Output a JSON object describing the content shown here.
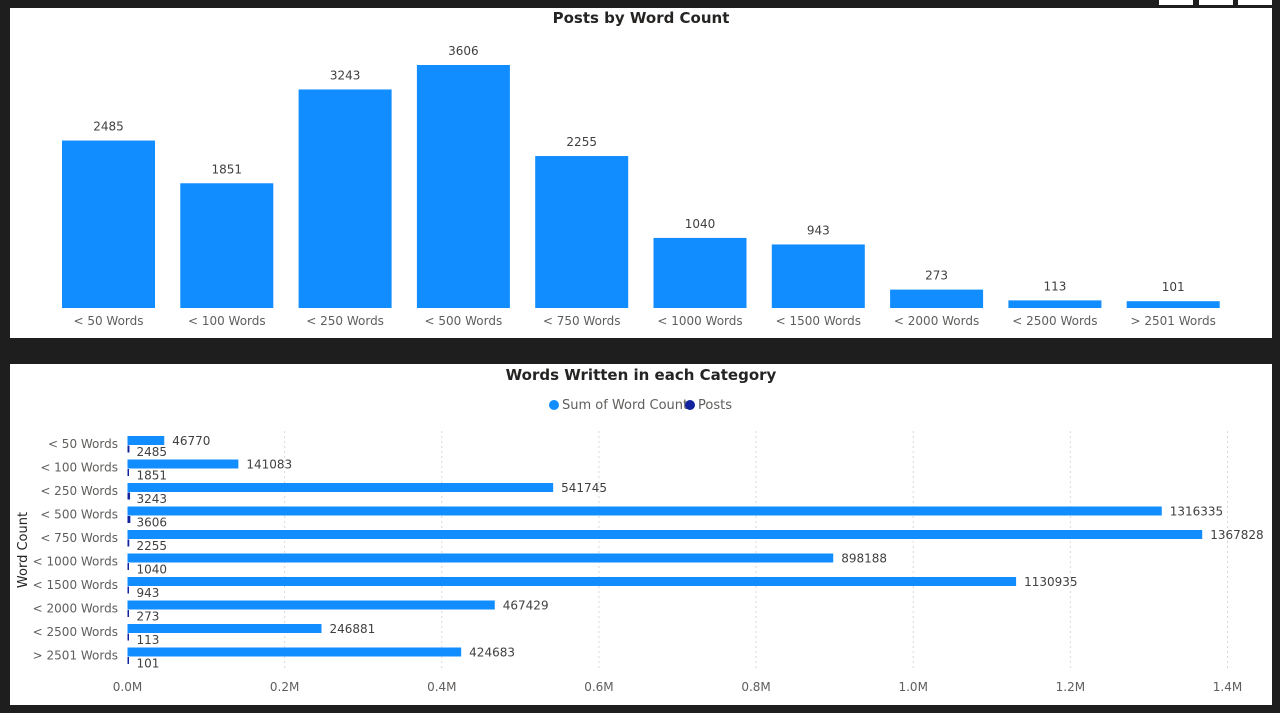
{
  "colors": {
    "primary": "#118DFF",
    "secondary": "#12239E",
    "background": "#1e1e1e",
    "panel": "#ffffff"
  },
  "chart_data": [
    {
      "type": "bar",
      "title": "Posts by Word Count",
      "categories": [
        "< 50 Words",
        "< 100 Words",
        "< 250 Words",
        "< 500 Words",
        "< 750 Words",
        "< 1000 Words",
        "< 1500 Words",
        "< 2000 Words",
        "< 2500 Words",
        "> 2501 Words"
      ],
      "values": [
        2485,
        1851,
        3243,
        3606,
        2255,
        1040,
        943,
        273,
        113,
        101
      ],
      "ylim": [
        0,
        3606
      ],
      "data_labels": true,
      "grid": false
    },
    {
      "type": "bar",
      "orientation": "horizontal",
      "title": "Words Written in each Category",
      "ylabel": "Word Count",
      "categories": [
        "< 50 Words",
        "< 100 Words",
        "< 250 Words",
        "< 500 Words",
        "< 750 Words",
        "< 1000 Words",
        "< 1500 Words",
        "< 2000 Words",
        "< 2500 Words",
        "> 2501 Words"
      ],
      "series": [
        {
          "name": "Sum of Word Count",
          "color": "#118DFF",
          "values": [
            46770,
            141083,
            541745,
            1316335,
            1367828,
            898188,
            1130935,
            467429,
            246881,
            424683
          ]
        },
        {
          "name": "Posts",
          "color": "#12239E",
          "values": [
            2485,
            1851,
            3243,
            3606,
            2255,
            1040,
            943,
            273,
            113,
            101
          ]
        }
      ],
      "xlim": [
        0,
        1400000
      ],
      "xticks": [
        "0.0M",
        "0.2M",
        "0.4M",
        "0.6M",
        "0.8M",
        "1.0M",
        "1.2M",
        "1.4M"
      ],
      "legend_position": "top-center",
      "grid": true
    }
  ]
}
